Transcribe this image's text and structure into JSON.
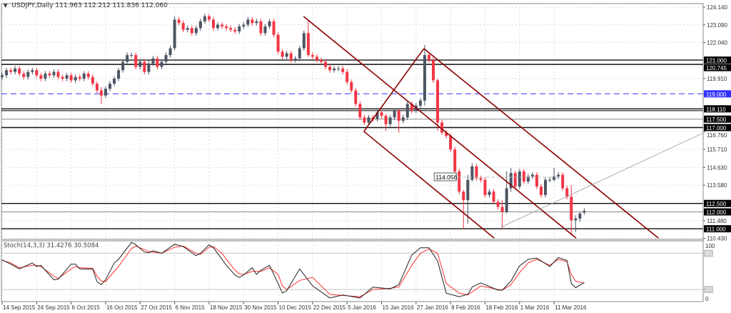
{
  "header": {
    "symbol": "USDJPY,Daily",
    "open": "111.963",
    "high": "112.212",
    "low": "111.836",
    "close": "112.060"
  },
  "indicator": {
    "label": "Stoch(14,3,3)",
    "k_value": "31.4276",
    "d_value": "30.5084"
  },
  "colors": {
    "bull": "#4b5563",
    "bear": "#f23645",
    "trendline": "#8b0000",
    "blue_level": "#3030ff",
    "stoch_k": "#222222",
    "stoch_d": "#ff3030",
    "grid": "#dddddd"
  },
  "chart_data": [
    {
      "type": "candlestick",
      "title": "",
      "ylim": [
        110.37,
        124.27
      ],
      "grid": true,
      "price_ticks": [
        "124.140",
        "123.090",
        "122.040",
        "119.910",
        "116.760",
        "115.710",
        "114.630",
        "113.580",
        "111.480",
        "110.430"
      ],
      "date_ticks": [
        "14 Sep 2015",
        "24 Sep 2015",
        "6 Oct 2015",
        "16 Oct 2015",
        "27 Oct 2015",
        "6 Nov 2015",
        "18 Nov 2015",
        "30 Nov 2015",
        "10 Dec 2015",
        "22 Dec 2015",
        "5 Jan 2016",
        "15 Jan 2016",
        "27 Jan 2016",
        "8 Feb 2016",
        "18 Feb 2016",
        "1 Mar 2016",
        "11 Mar 2016"
      ],
      "date_tick_every_n_bars": 8,
      "close": [
        120.1,
        120.4,
        120.3,
        120.5,
        120.2,
        120.0,
        120.3,
        120.4,
        120.1,
        119.9,
        120.2,
        120.1,
        120.3,
        120.0,
        119.9,
        120.1,
        119.8,
        120.0,
        119.9,
        120.2,
        120.0,
        119.6,
        119.2,
        118.9,
        119.3,
        119.6,
        119.9,
        120.4,
        120.9,
        121.3,
        121.3,
        120.6,
        120.9,
        120.3,
        120.8,
        121.1,
        120.6,
        120.9,
        121.3,
        121.7,
        123.4,
        123.2,
        122.8,
        122.9,
        122.6,
        122.9,
        123.3,
        123.6,
        123.4,
        122.9,
        123.1,
        123.0,
        122.9,
        122.8,
        122.7,
        123.0,
        123.1,
        123.4,
        123.2,
        123.3,
        122.6,
        123.0,
        123.3,
        122.5,
        121.5,
        121.2,
        121.4,
        121.0,
        121.1,
        121.7,
        122.6,
        121.3,
        121.2,
        121.0,
        120.9,
        120.6,
        120.4,
        120.5,
        120.5,
        120.3,
        119.7,
        119.2,
        118.4,
        117.6,
        117.3,
        117.6,
        117.5,
        117.9,
        117.7,
        117.2,
        117.6,
        118.0,
        117.4,
        117.6,
        118.4,
        118.0,
        118.3,
        118.6,
        121.3,
        121.0,
        119.8,
        117.3,
        116.7,
        116.5,
        115.7,
        114.4,
        113.2,
        112.7,
        113.9,
        114.7,
        114.0,
        113.9,
        113.0,
        113.2,
        112.6,
        112.3,
        112.0,
        113.4,
        114.3,
        113.5,
        114.4,
        113.8,
        114.1,
        114.2,
        113.5,
        113.0,
        113.9,
        113.9,
        114.1,
        114.2,
        113.4,
        112.9,
        111.5,
        111.6,
        111.9,
        112.06
      ],
      "first_open": 120.0,
      "last_bar": {
        "open": 111.963,
        "high": 112.212,
        "low": 111.836,
        "close": 112.06
      },
      "extreme_wicks": {
        "23": [
          119.4,
          118.4
        ],
        "40": [
          123.6,
          121.6
        ],
        "71": [
          123.4,
          121.2
        ],
        "89": [
          117.8,
          116.8
        ],
        "92": [
          118.1,
          116.7
        ],
        "98": [
          121.9,
          118.3
        ],
        "101": [
          119.9,
          116.8
        ],
        "107": [
          113.3,
          111.0
        ],
        "108": [
          114.2,
          111.3
        ],
        "109": [
          114.9,
          113.8
        ],
        "116": [
          112.7,
          111.0
        ],
        "117": [
          114.4,
          111.9
        ],
        "118": [
          114.6,
          113.2
        ],
        "128": [
          114.6,
          113.8
        ],
        "132": [
          113.6,
          110.6
        ],
        "133": [
          111.8,
          110.8
        ],
        "134": [
          112.0,
          111.4
        ]
      },
      "horizontal_levels": [
        {
          "price": 121.0,
          "label": "121.000",
          "style": "solid-black"
        },
        {
          "price": 120.745,
          "label": "120.745",
          "style": "solid-black"
        },
        {
          "price": 119.0,
          "label": "119.000",
          "style": "dashed-blue"
        },
        {
          "price": 118.11,
          "label": "118.110",
          "style": "double-black"
        },
        {
          "price": 117.5,
          "label": "117.500",
          "style": "solid-gray"
        },
        {
          "price": 117.0,
          "label": "117.000",
          "style": "solid-black"
        },
        {
          "price": 112.5,
          "label": "112.500",
          "style": "solid-black"
        },
        {
          "price": 112.0,
          "label": "112.000",
          "style": "solid-gray"
        },
        {
          "price": 111.0,
          "label": "111.000",
          "style": "solid-black"
        }
      ],
      "trendlines": [
        {
          "from": [
            69.9,
            123.59
          ],
          "to": [
            133.1,
            110.45
          ],
          "color": "#8b0000"
        },
        {
          "from": [
            97.8,
            121.68
          ],
          "to": [
            152.2,
            110.45
          ],
          "color": "#8b0000"
        },
        {
          "from": [
            83.9,
            116.77
          ],
          "to": [
            114.1,
            110.45
          ],
          "color": "#8b0000"
        },
        {
          "from": [
            83.9,
            116.77
          ],
          "to": [
            97.8,
            121.68
          ],
          "color": "#8b0000"
        },
        {
          "from": [
            115.7,
            111.09
          ],
          "to": [
            162.6,
            116.68
          ],
          "color": "#999999"
        }
      ],
      "price_marker": {
        "label": "114.056",
        "price": 114.056,
        "from_bar": 105.5,
        "to_bar": 129
      }
    },
    {
      "type": "line",
      "title": "Stoch(14,3,3)",
      "ylim": [
        0,
        100
      ],
      "y_ticks": [
        "100",
        "80",
        "20",
        "0"
      ],
      "levels": [
        80,
        20
      ],
      "series": [
        {
          "name": "%K",
          "points": [
            [
              0,
              69
            ],
            [
              2,
              62
            ],
            [
              4,
              54
            ],
            [
              7,
              64
            ],
            [
              8,
              58
            ],
            [
              9,
              60
            ],
            [
              12,
              36
            ],
            [
              13,
              37
            ],
            [
              16,
              62
            ],
            [
              17,
              62
            ],
            [
              18,
              54
            ],
            [
              21,
              54
            ],
            [
              22,
              33
            ],
            [
              23,
              28
            ],
            [
              24,
              36
            ],
            [
              26,
              64
            ],
            [
              27,
              70
            ],
            [
              30,
              98
            ],
            [
              31,
              94
            ],
            [
              33,
              82
            ],
            [
              34,
              81
            ],
            [
              35,
              84
            ],
            [
              37,
              80
            ],
            [
              40,
              95
            ],
            [
              42,
              91
            ],
            [
              45,
              76
            ],
            [
              46,
              80
            ],
            [
              48,
              94
            ],
            [
              49,
              89
            ],
            [
              51,
              70
            ],
            [
              52,
              60
            ],
            [
              54,
              44
            ],
            [
              55,
              40
            ],
            [
              56,
              44
            ],
            [
              58,
              56
            ],
            [
              59,
              45
            ],
            [
              60,
              52
            ],
            [
              62,
              60
            ],
            [
              64,
              30
            ],
            [
              65,
              14
            ],
            [
              66,
              18
            ],
            [
              69,
              54
            ],
            [
              72,
              26
            ],
            [
              76,
              6
            ],
            [
              79,
              11
            ],
            [
              83,
              6
            ],
            [
              86,
              24
            ],
            [
              90,
              21
            ],
            [
              92,
              28
            ],
            [
              95,
              77
            ],
            [
              97,
              89
            ],
            [
              99,
              89
            ],
            [
              101,
              67
            ],
            [
              103,
              14
            ],
            [
              106,
              8
            ],
            [
              108,
              12
            ],
            [
              109,
              24
            ],
            [
              111,
              31
            ],
            [
              115,
              19
            ],
            [
              116,
              19
            ],
            [
              118,
              34
            ],
            [
              120,
              59
            ],
            [
              122,
              70
            ],
            [
              124,
              72
            ],
            [
              127,
              58
            ],
            [
              129,
              73
            ],
            [
              131,
              68
            ],
            [
              132,
              30
            ],
            [
              133,
              23
            ],
            [
              135,
              31.4
            ]
          ]
        },
        {
          "name": "%D",
          "points": [
            [
              0,
              68
            ],
            [
              2,
              64
            ],
            [
              4,
              56
            ],
            [
              7,
              60
            ],
            [
              8,
              60
            ],
            [
              9,
              58
            ],
            [
              12,
              42
            ],
            [
              13,
              38
            ],
            [
              16,
              54
            ],
            [
              17,
              58
            ],
            [
              18,
              56
            ],
            [
              21,
              55
            ],
            [
              22,
              42
            ],
            [
              23,
              34
            ],
            [
              24,
              33
            ],
            [
              26,
              50
            ],
            [
              27,
              58
            ],
            [
              30,
              88
            ],
            [
              31,
              92
            ],
            [
              33,
              86
            ],
            [
              34,
              83
            ],
            [
              35,
              82
            ],
            [
              37,
              80
            ],
            [
              40,
              90
            ],
            [
              42,
              92
            ],
            [
              45,
              80
            ],
            [
              46,
              78
            ],
            [
              48,
              90
            ],
            [
              49,
              91
            ],
            [
              51,
              80
            ],
            [
              52,
              70
            ],
            [
              54,
              52
            ],
            [
              55,
              46
            ],
            [
              56,
              45
            ],
            [
              58,
              50
            ],
            [
              59,
              50
            ],
            [
              60,
              50
            ],
            [
              62,
              56
            ],
            [
              64,
              45
            ],
            [
              65,
              26
            ],
            [
              66,
              20
            ],
            [
              69,
              35
            ],
            [
              72,
              40
            ],
            [
              76,
              12
            ],
            [
              79,
              10
            ],
            [
              83,
              8
            ],
            [
              86,
              20
            ],
            [
              90,
              22
            ],
            [
              92,
              24
            ],
            [
              95,
              60
            ],
            [
              97,
              80
            ],
            [
              99,
              87
            ],
            [
              101,
              80
            ],
            [
              103,
              30
            ],
            [
              106,
              14
            ],
            [
              108,
              11
            ],
            [
              109,
              16
            ],
            [
              111,
              26
            ],
            [
              115,
              20
            ],
            [
              116,
              19
            ],
            [
              118,
              28
            ],
            [
              120,
              48
            ],
            [
              122,
              64
            ],
            [
              124,
              70
            ],
            [
              127,
              60
            ],
            [
              129,
              70
            ],
            [
              131,
              66
            ],
            [
              132,
              45
            ],
            [
              133,
              34
            ],
            [
              135,
              30.5
            ]
          ]
        }
      ]
    }
  ]
}
